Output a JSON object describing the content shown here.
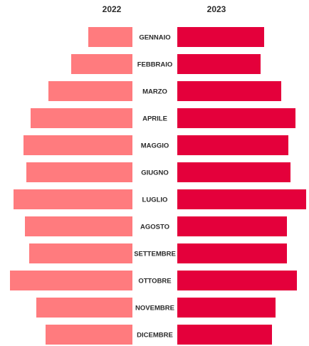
{
  "chart_data": {
    "type": "bar",
    "orientation": "horizontal-butterfly",
    "categories": [
      "GENNAIO",
      "FEBBRAIO",
      "MARZO",
      "APRILE",
      "MAGGIO",
      "GIUGNO",
      "LUGLIO",
      "AGOSTO",
      "SETTEMBRE",
      "OTTOBRE",
      "NOVEMBRE",
      "DICEMBRE"
    ],
    "series": [
      {
        "name": "2022",
        "side": "left",
        "color": "#ff7b7e",
        "values": [
          62,
          86,
          118,
          143,
          153,
          149,
          167,
          151,
          145,
          172,
          135,
          122
        ]
      },
      {
        "name": "2023",
        "side": "right",
        "color": "#e4003b",
        "values": [
          122,
          117,
          146,
          166,
          156,
          159,
          181,
          154,
          154,
          168,
          138,
          133
        ]
      }
    ],
    "title": "",
    "xlabel": "",
    "ylabel": "",
    "grid": false
  }
}
